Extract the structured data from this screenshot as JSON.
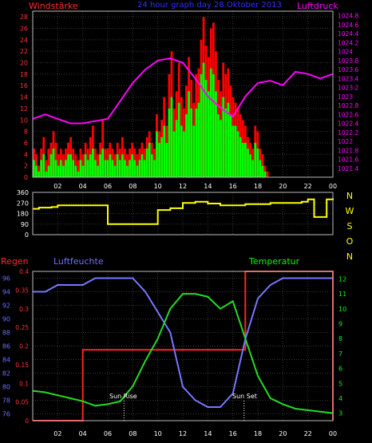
{
  "header": {
    "title_left": "Windstärke",
    "title_center": "24 hour graph day 28.Oktober 2013",
    "title_right": "Luftdruck"
  },
  "bottom_header": {
    "left": "Regen",
    "center": "Luftfeuchte",
    "right": "Temperatur"
  },
  "colors": {
    "wind_red": "#ff0000",
    "wind_green": "#00ff00",
    "pressure": "#ff00ff",
    "direction": "#ffff00",
    "humidity": "#7777ff",
    "temperature": "#22dd22",
    "rain": "#ff2222",
    "grid": "#3a3a3a",
    "axis": "#ffffff"
  },
  "x_tick_labels": [
    "02",
    "04",
    "06",
    "08",
    "10",
    "12",
    "14",
    "16",
    "18",
    "20",
    "22",
    "00"
  ],
  "direction_letters": [
    "N",
    "W",
    "S",
    "O",
    "N"
  ],
  "annotations": {
    "sunrise": "Sun Rise",
    "sunset": "Sun Set"
  },
  "chart_data": [
    {
      "type": "bar",
      "name": "wind",
      "y_left_ticks": [
        "0",
        "2",
        "4",
        "6",
        "8",
        "10",
        "12",
        "14",
        "16",
        "18",
        "20",
        "22",
        "24",
        "26",
        "28"
      ],
      "y_right_ticks": [
        "1021.4",
        "1021.6",
        "1021.8",
        "1022",
        "1022.2",
        "1022.4",
        "1022.6",
        "1022.8",
        "1023",
        "1023.2",
        "1023.4",
        "1023.6",
        "1023.8",
        "1024",
        "1024.2",
        "1024.4",
        "1024.6",
        "1024.8"
      ],
      "ylim_left": [
        0,
        29
      ],
      "ylim_right": [
        1021.2,
        1024.9
      ],
      "x_hours": [
        0,
        24
      ],
      "gust_series": "red",
      "speed_series": "green",
      "gust_values": [
        5,
        4,
        2,
        5,
        7,
        3,
        5,
        6,
        8,
        6,
        4,
        5,
        4,
        5,
        6,
        7,
        5,
        4,
        3,
        5,
        4,
        6,
        5,
        7,
        9,
        5,
        4,
        6,
        10,
        5,
        5,
        6,
        5,
        4,
        6,
        5,
        7,
        5,
        4,
        5,
        6,
        5,
        4,
        5,
        6,
        5,
        7,
        8,
        6,
        5,
        11,
        8,
        10,
        14,
        9,
        18,
        22,
        12,
        15,
        20,
        14,
        12,
        16,
        21,
        17,
        13,
        18,
        19,
        24,
        28,
        23,
        21,
        26,
        27,
        22,
        17,
        15,
        20,
        18,
        19,
        16,
        14,
        13,
        12,
        11,
        10,
        9,
        7,
        6,
        5,
        9,
        8,
        5,
        4,
        2,
        1,
        0,
        0,
        0,
        0,
        0,
        0,
        0,
        0,
        0,
        0,
        0,
        0,
        0,
        0,
        0,
        0,
        0,
        0,
        0,
        0,
        0,
        0,
        0,
        0,
        0,
        0
      ],
      "speed_values": [
        3,
        2,
        1,
        3,
        4,
        1,
        2,
        4,
        5,
        3,
        2,
        3,
        2,
        3,
        4,
        4,
        3,
        2,
        1,
        3,
        2,
        4,
        3,
        4,
        5,
        3,
        2,
        4,
        5,
        3,
        3,
        4,
        3,
        2,
        4,
        3,
        4,
        3,
        2,
        3,
        4,
        3,
        2,
        3,
        4,
        3,
        5,
        6,
        4,
        3,
        8,
        6,
        7,
        9,
        6,
        12,
        14,
        8,
        10,
        13,
        9,
        8,
        11,
        15,
        12,
        9,
        12,
        13,
        18,
        20,
        17,
        15,
        19,
        18,
        15,
        11,
        10,
        14,
        12,
        13,
        11,
        9,
        9,
        8,
        7,
        6,
        6,
        5,
        4,
        3,
        6,
        5,
        3,
        2,
        1,
        0,
        0,
        0,
        0,
        0,
        0,
        0,
        0,
        0,
        0,
        0,
        0,
        0,
        0,
        0,
        0,
        0,
        0,
        0,
        0,
        0,
        0,
        0,
        0,
        0,
        0,
        0
      ],
      "pressure_hours": [
        0,
        1,
        2,
        3,
        4,
        5,
        6,
        7,
        8,
        9,
        10,
        11,
        12,
        13,
        14,
        15,
        16,
        17,
        18,
        19,
        20,
        21,
        22,
        23,
        24
      ],
      "pressure_values": [
        1022.5,
        1022.6,
        1022.5,
        1022.4,
        1022.4,
        1022.45,
        1022.5,
        1022.9,
        1023.3,
        1023.6,
        1023.8,
        1023.85,
        1023.75,
        1023.4,
        1023.0,
        1022.75,
        1022.55,
        1023.0,
        1023.3,
        1023.35,
        1023.25,
        1023.55,
        1023.5,
        1023.4,
        1023.5
      ]
    },
    {
      "type": "line",
      "name": "wind_direction",
      "y_ticks": [
        "0",
        "90",
        "180",
        "270",
        "360"
      ],
      "ylim": [
        0,
        360
      ],
      "x": [
        0,
        0.5,
        1,
        1.5,
        2,
        3,
        4,
        5,
        6,
        7,
        8,
        9,
        9.9,
        10,
        11,
        12,
        13,
        14,
        15,
        16,
        17,
        18,
        19,
        20,
        21,
        21.5,
        22,
        22.5,
        23,
        23.5,
        24
      ],
      "values": [
        220,
        230,
        230,
        235,
        250,
        250,
        250,
        250,
        90,
        90,
        90,
        90,
        90,
        210,
        225,
        270,
        280,
        265,
        250,
        250,
        260,
        260,
        270,
        270,
        270,
        280,
        300,
        150,
        150,
        300,
        310
      ]
    },
    {
      "type": "line",
      "name": "humidity_temperature_rain",
      "humidity_ticks": [
        "76",
        "78",
        "80",
        "82",
        "84",
        "86",
        "88",
        "90",
        "92",
        "94",
        "96"
      ],
      "humidity_ylim": [
        75,
        97
      ],
      "rain_ticks": [
        "0",
        "0.05",
        "0.1",
        "0.15",
        "0.2",
        "0.25",
        "0.3",
        "0.35",
        "0.4"
      ],
      "rain_ylim": [
        0,
        0.4
      ],
      "temperature_ticks": [
        "3",
        "4",
        "5",
        "6",
        "7",
        "8",
        "9",
        "10",
        "11",
        "12"
      ],
      "temperature_ylim": [
        2.5,
        12.5
      ],
      "x": [
        0,
        1,
        2,
        3,
        4,
        5,
        6,
        7,
        8,
        9,
        10,
        11,
        12,
        13,
        14,
        15,
        16,
        17,
        18,
        19,
        20,
        21,
        22,
        23,
        24
      ],
      "humidity": [
        94,
        94,
        95,
        95,
        95,
        96,
        96,
        96,
        96,
        94,
        91,
        88,
        80,
        78,
        77,
        77,
        79,
        87,
        93,
        95,
        96,
        96,
        96,
        96,
        96
      ],
      "temperature": [
        4.5,
        4.4,
        4.2,
        4.0,
        3.8,
        3.5,
        3.6,
        3.8,
        4.8,
        6.5,
        8.0,
        10.0,
        11.0,
        11.0,
        10.8,
        10.0,
        10.5,
        8.0,
        5.5,
        4.0,
        3.6,
        3.3,
        3.2,
        3.1,
        3.0
      ],
      "rain": [
        0,
        0,
        0,
        0,
        0.19,
        0.19,
        0.19,
        0.19,
        0.19,
        0.19,
        0.19,
        0.19,
        0.19,
        0.19,
        0.19,
        0.19,
        0.19,
        0.4,
        0.4,
        0.4,
        0.4,
        0.4,
        0.4,
        0.4,
        0.0
      ]
    }
  ]
}
